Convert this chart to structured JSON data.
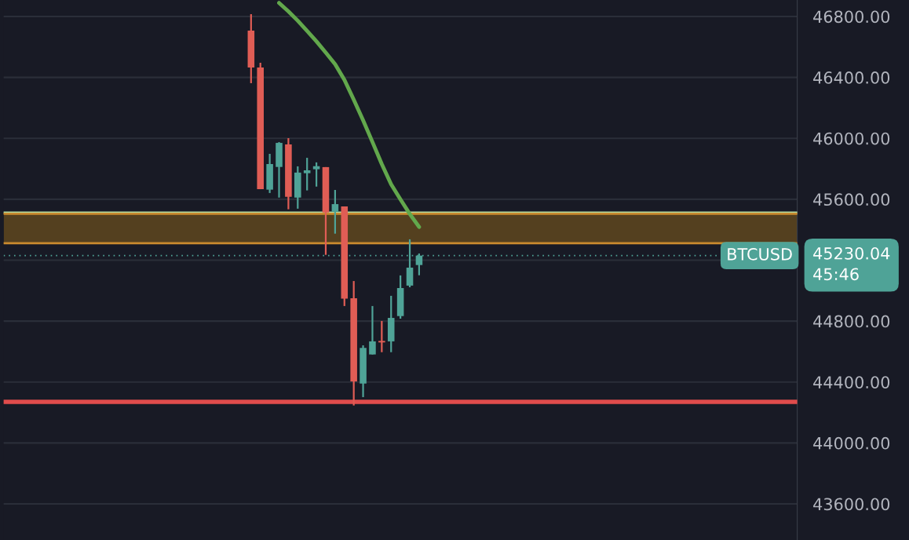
{
  "chart_data": {
    "type": "candlestick",
    "categories": [
      null,
      null,
      null,
      null,
      null,
      null,
      null,
      null,
      null,
      null,
      null,
      null,
      null,
      null,
      null,
      null,
      null,
      null,
      null,
      null,
      null,
      null,
      null,
      null,
      null,
      null,
      null,
      null,
      null,
      null,
      null,
      null,
      null,
      null,
      null,
      null,
      null,
      null,
      null,
      null,
      null,
      null,
      null,
      null,
      null,
      null,
      null,
      null,
      null,
      null,
      null,
      null,
      null,
      null,
      null,
      null,
      null,
      null,
      null,
      null,
      null,
      null,
      null,
      null,
      null,
      null,
      null,
      null,
      null,
      null,
      null,
      null,
      null,
      null,
      null,
      null,
      null,
      null,
      null,
      null,
      null,
      null,
      null,
      null,
      null
    ],
    "ohlc": [
      null,
      null,
      null,
      null,
      null,
      null,
      null,
      null,
      null,
      null,
      null,
      null,
      null,
      null,
      null,
      null,
      null,
      null,
      null,
      null,
      null,
      null,
      null,
      null,
      null,
      null,
      [
        46707,
        46815,
        46362,
        46465
      ],
      [
        46465,
        46496,
        45666,
        45666
      ],
      [
        45663,
        45898,
        45641,
        45831
      ],
      [
        45812,
        45975,
        45611,
        45970
      ],
      [
        45960,
        46001,
        45534,
        45616
      ],
      [
        45611,
        45816,
        45538,
        45775
      ],
      [
        45771,
        45872,
        45658,
        45790
      ],
      [
        45797,
        45842,
        45683,
        45817
      ],
      [
        45811,
        45811,
        45235,
        45513
      ],
      [
        45518,
        45661,
        45374,
        45568
      ],
      [
        45553,
        45553,
        44899,
        44947
      ],
      [
        44950,
        45063,
        44246,
        44404
      ],
      [
        44390,
        44641,
        44301,
        44624
      ],
      [
        44581,
        44899,
        44581,
        44667
      ],
      [
        44670,
        44801,
        44596,
        44660
      ],
      [
        44667,
        44966,
        44596,
        44821
      ],
      [
        44833,
        45100,
        44816,
        45017
      ],
      [
        45033,
        45337,
        45022,
        45151
      ],
      [
        45168,
        45244,
        45101,
        45230
      ],
      null,
      null,
      null,
      null,
      null,
      null,
      null,
      null,
      null,
      null,
      null,
      null,
      null,
      null,
      null,
      null,
      null,
      null,
      null,
      null,
      null,
      null,
      null,
      null,
      null,
      null,
      null,
      null,
      null,
      null,
      null,
      null,
      null,
      null,
      null,
      null,
      null,
      null,
      null,
      null
    ],
    "colors": [
      null,
      null,
      null,
      null,
      null,
      null,
      null,
      null,
      null,
      null,
      null,
      null,
      null,
      null,
      null,
      null,
      null,
      null,
      null,
      null,
      null,
      null,
      null,
      null,
      null,
      null,
      "#e05d55",
      "#e05d55",
      "#4fa397",
      "#4fa397",
      "#e05d55",
      "#4fa397",
      "#4fa397",
      "#4fa397",
      "#e05d55",
      "#4fa397",
      "#e05d55",
      "#e05d55",
      "#4fa397",
      "#4fa397",
      "#e05d55",
      "#4fa397",
      "#4fa397",
      "#4fa397",
      "#4fa397",
      null,
      null,
      null,
      null,
      null,
      null,
      null,
      null,
      null,
      null,
      null,
      null,
      null,
      null,
      null,
      null,
      null,
      null,
      null,
      null,
      null,
      null,
      null,
      null,
      null,
      null,
      null,
      null,
      null,
      null,
      null,
      null,
      null,
      null,
      null,
      null,
      null,
      null,
      null,
      null
    ],
    "series": [
      {
        "type": "line",
        "color": "#62a84c",
        "values": [
          null,
          null,
          null,
          null,
          null,
          null,
          null,
          null,
          null,
          null,
          null,
          null,
          null,
          null,
          null,
          null,
          null,
          null,
          null,
          null,
          null,
          null,
          null,
          null,
          null,
          null,
          null,
          null,
          null,
          46889,
          46833,
          46772,
          46705,
          46637,
          46563,
          46487,
          46384,
          46254,
          46118,
          45976,
          45831,
          45698,
          45599,
          45503,
          45418,
          null,
          null,
          null,
          null,
          null,
          null,
          null,
          null,
          null,
          null,
          null,
          null,
          null,
          null,
          null,
          null,
          null,
          null,
          null,
          null,
          null,
          null,
          null,
          null,
          null,
          null,
          null,
          null,
          null,
          null,
          null,
          null,
          null,
          null,
          null,
          null,
          null,
          null,
          null,
          null
        ]
      }
    ],
    "bands": [
      {
        "axis": "y",
        "from": 45311,
        "to": 45505,
        "color": "#54401f"
      }
    ],
    "ref_lines": [
      {
        "axis": "y",
        "value": 45512,
        "color": "#b5dba0",
        "line_style": "solid"
      },
      {
        "axis": "y",
        "value": 45505,
        "color": "#c98a2e",
        "line_style": "solid"
      },
      {
        "axis": "y",
        "value": 45311,
        "color": "#c98a2e",
        "line_style": "solid"
      },
      {
        "axis": "y",
        "value": 44270,
        "color": "#e04c4c",
        "line_style": "solid"
      },
      {
        "axis": "y",
        "value": 45230.04,
        "color": "#4fa397",
        "line_style": "dotted",
        "label": "BTCUSD"
      }
    ],
    "annotations": [
      "45230.04",
      "45:46"
    ],
    "ylim": [
      43363,
      46908
    ],
    "yticks": [
      {
        "value": 43600,
        "label": "43600.00"
      },
      {
        "value": 44000,
        "label": "44000.00"
      },
      {
        "value": 44400,
        "label": "44400.00"
      },
      {
        "value": 44800,
        "label": "44800.00"
      },
      {
        "value": 45200,
        "label": null
      },
      {
        "value": 45600,
        "label": "45600.00"
      },
      {
        "value": 46000,
        "label": "46000.00"
      },
      {
        "value": 46400,
        "label": "46400.00"
      },
      {
        "value": 46800,
        "label": "46800.00"
      }
    ],
    "tick_labels": "y",
    "grid": "y"
  }
}
